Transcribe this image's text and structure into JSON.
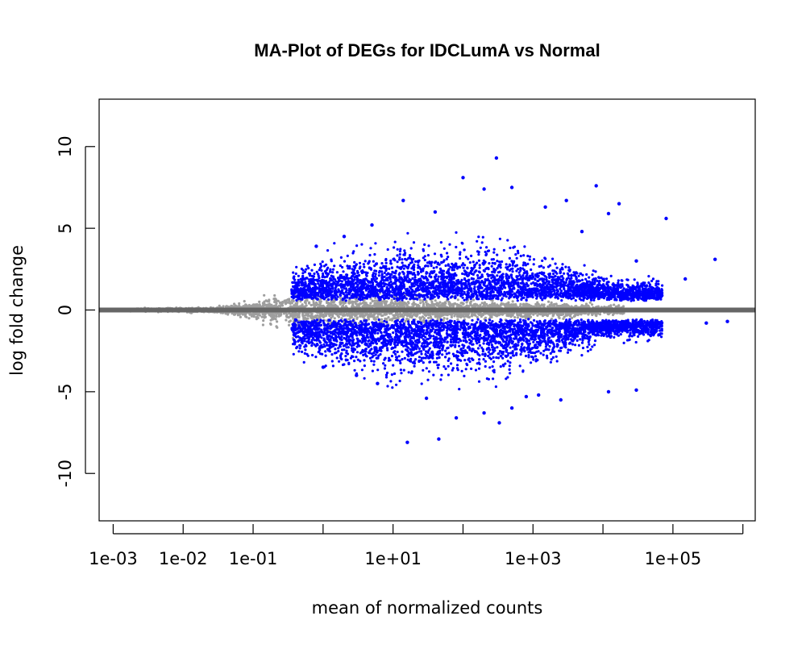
{
  "chart_data": {
    "type": "scatter",
    "title": "MA-Plot of DEGs for IDCLumA vs Normal",
    "xlabel": "mean of normalized counts",
    "ylabel": "log fold change",
    "x_scale": "log10",
    "xlim": [
      0.00063,
      1500000
    ],
    "ylim": [
      -12.9,
      12.9
    ],
    "x_ticks": [
      0.001,
      0.01,
      0.1,
      1,
      10,
      100,
      1000,
      10000,
      100000,
      1000000
    ],
    "x_tick_labels": [
      "1e-03",
      "1e-02",
      "1e-01",
      "",
      "1e+01",
      "",
      "1e+03",
      "",
      "1e+05",
      ""
    ],
    "y_ticks": [
      -10,
      -5,
      0,
      5,
      10
    ],
    "y_tick_labels": [
      "-10",
      "-5",
      "0",
      "5",
      "10"
    ],
    "reference_line": {
      "y": 0,
      "color": "#666666"
    },
    "colors": {
      "significant": "#0000ff",
      "not_significant": "#9e9e9e"
    },
    "series": [
      {
        "name": "",
        "role": "significant",
        "color": "#0000ff",
        "points": [
          {
            "x": 100,
            "y": 8.1
          },
          {
            "x": 300,
            "y": 9.3
          },
          {
            "x": 16,
            "y": -8.1
          },
          {
            "x": 45,
            "y": -7.9
          },
          {
            "x": 330,
            "y": -6.9
          },
          {
            "x": 80,
            "y": -6.6
          },
          {
            "x": 8000,
            "y": 7.6
          },
          {
            "x": 80000,
            "y": 5.6
          },
          {
            "x": 14,
            "y": 6.7
          },
          {
            "x": 200,
            "y": 7.4
          },
          {
            "x": 500,
            "y": 7.5
          },
          {
            "x": 3000,
            "y": 6.7
          },
          {
            "x": 17000,
            "y": 6.5
          },
          {
            "x": 12000,
            "y": 5.9
          },
          {
            "x": 30000,
            "y": 3.0
          },
          {
            "x": 400000,
            "y": 3.1
          },
          {
            "x": 600000,
            "y": -0.7
          },
          {
            "x": 300000,
            "y": -0.8
          },
          {
            "x": 12000,
            "y": -5.0
          },
          {
            "x": 30000,
            "y": -4.9
          },
          {
            "x": 2500,
            "y": -5.5
          },
          {
            "x": 1200,
            "y": -5.2
          },
          {
            "x": 800,
            "y": -5.3
          },
          {
            "x": 500,
            "y": -6.0
          },
          {
            "x": 200,
            "y": -6.3
          },
          {
            "x": 30,
            "y": -5.4
          },
          {
            "x": 6,
            "y": -4.5
          },
          {
            "x": 3,
            "y": -4.0
          },
          {
            "x": 1,
            "y": -3.5
          },
          {
            "x": 5,
            "y": 5.2
          },
          {
            "x": 2,
            "y": 4.5
          },
          {
            "x": 0.8,
            "y": 3.9
          },
          {
            "x": 40,
            "y": 6.0
          },
          {
            "x": 1500,
            "y": 6.3
          },
          {
            "x": 5000,
            "y": 4.8
          },
          {
            "x": 150000,
            "y": 1.9
          }
        ]
      }
    ]
  }
}
